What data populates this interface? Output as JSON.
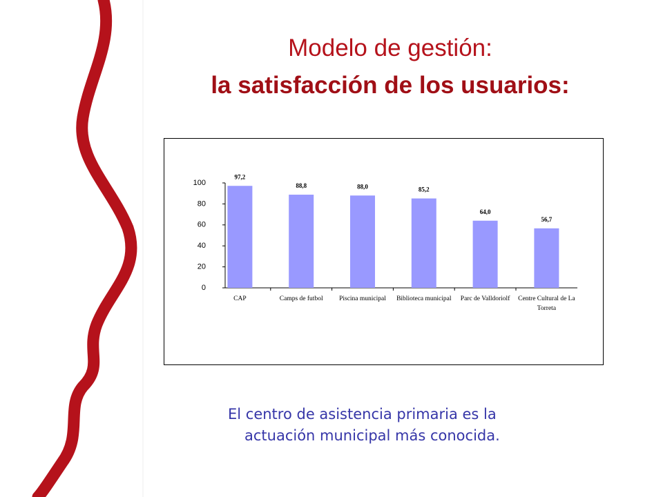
{
  "slide": {
    "title": "Modelo de gestión:",
    "subtitle": "la satisfacción de los usuarios:",
    "caption": [
      "El centro de asistencia primaria es la",
      "actuación municipal más conocida."
    ]
  },
  "chart_data": {
    "type": "bar",
    "categories": [
      "CAP",
      "Camps de futbol",
      "Piscina municipal",
      "Biblioteca municipal",
      "Parc de Valldoriolf",
      "Centre Cultural de La Torreta"
    ],
    "values": [
      97.2,
      88.8,
      88.0,
      85.2,
      64.0,
      56.7
    ],
    "value_labels": [
      "97,2",
      "88,8",
      "88,0",
      "85,2",
      "64,0",
      "56,7"
    ],
    "color": "#9999ff",
    "ylim": [
      0,
      100
    ],
    "yticks": [
      0,
      20,
      40,
      60,
      80,
      100
    ]
  }
}
